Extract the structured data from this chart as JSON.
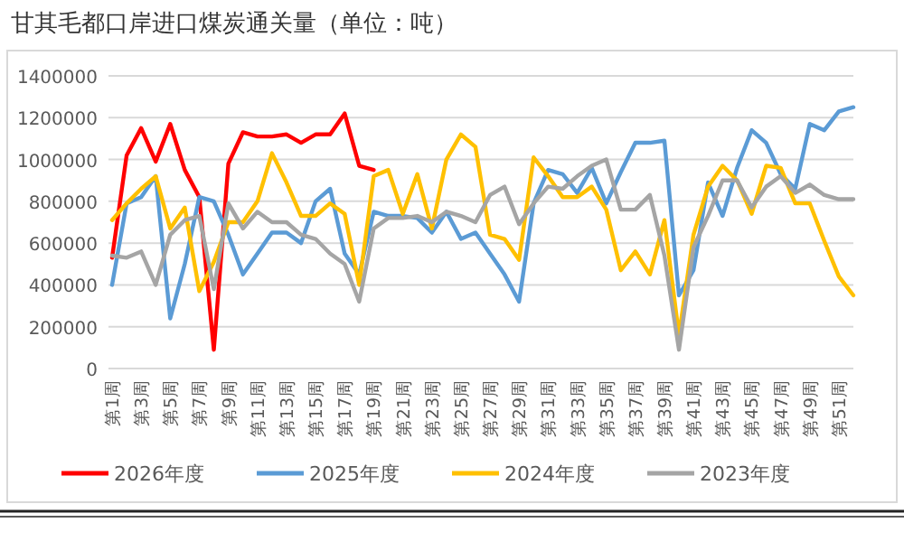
{
  "chart_data": {
    "type": "line",
    "title": "甘其毛都口岸进口煤炭通关量（单位：吨）",
    "categories": [
      "第1周",
      null,
      "第3周",
      null,
      "第5周",
      null,
      "第7周",
      null,
      "第9周",
      null,
      "第11周",
      null,
      "第13周",
      null,
      "第15周",
      null,
      "第17周",
      null,
      "第19周",
      null,
      "第21周",
      null,
      "第23周",
      null,
      "第25周",
      null,
      "第27周",
      null,
      "第29周",
      null,
      "第31周",
      null,
      "第33周",
      null,
      "第35周",
      null,
      "第37周",
      null,
      "第39周",
      null,
      "第41周",
      null,
      "第43周",
      null,
      "第45周",
      null,
      "第47周",
      null,
      "第49周",
      null,
      "第51周",
      null
    ],
    "series": [
      {
        "name": "2026年度",
        "color": "#ff0000",
        "values": [
          530000,
          1020000,
          1150000,
          990000,
          1170000,
          950000,
          820000,
          90000,
          980000,
          1130000,
          1110000,
          1110000,
          1120000,
          1080000,
          1120000,
          1120000,
          1220000,
          970000,
          950000,
          null,
          null,
          null,
          null,
          null,
          null,
          null,
          null,
          null,
          null,
          null,
          null,
          null,
          null,
          null,
          null,
          null,
          null,
          null,
          null,
          null,
          null,
          null,
          null,
          null,
          null,
          null,
          null,
          null,
          null,
          null,
          null,
          null
        ]
      },
      {
        "name": "2025年度",
        "color": "#5b9bd5",
        "values": [
          400000,
          790000,
          820000,
          920000,
          240000,
          500000,
          820000,
          800000,
          640000,
          450000,
          550000,
          650000,
          650000,
          600000,
          800000,
          860000,
          550000,
          450000,
          750000,
          730000,
          730000,
          720000,
          650000,
          750000,
          620000,
          650000,
          550000,
          450000,
          320000,
          790000,
          950000,
          930000,
          840000,
          960000,
          790000,
          940000,
          1080000,
          1080000,
          1090000,
          350000,
          470000,
          890000,
          730000,
          960000,
          1140000,
          1080000,
          930000,
          860000,
          1170000,
          1140000,
          1230000,
          1250000
        ]
      },
      {
        "name": "2024年度",
        "color": "#ffc000",
        "values": [
          710000,
          790000,
          860000,
          920000,
          670000,
          770000,
          370000,
          510000,
          700000,
          700000,
          800000,
          1030000,
          890000,
          730000,
          730000,
          790000,
          740000,
          400000,
          920000,
          950000,
          740000,
          930000,
          670000,
          1000000,
          1120000,
          1060000,
          640000,
          620000,
          520000,
          1010000,
          920000,
          820000,
          820000,
          870000,
          760000,
          470000,
          560000,
          450000,
          710000,
          160000,
          640000,
          870000,
          970000,
          900000,
          740000,
          970000,
          960000,
          790000,
          790000,
          610000,
          440000,
          350000
        ]
      },
      {
        "name": "2023年度",
        "color": "#a5a5a5",
        "values": [
          540000,
          530000,
          560000,
          400000,
          640000,
          710000,
          730000,
          380000,
          790000,
          670000,
          750000,
          700000,
          700000,
          640000,
          620000,
          550000,
          500000,
          320000,
          670000,
          720000,
          720000,
          730000,
          700000,
          750000,
          730000,
          700000,
          830000,
          870000,
          690000,
          790000,
          870000,
          860000,
          920000,
          970000,
          1000000,
          760000,
          760000,
          830000,
          540000,
          90000,
          580000,
          730000,
          900000,
          900000,
          770000,
          870000,
          920000,
          840000,
          880000,
          830000,
          810000,
          810000
        ]
      }
    ],
    "ylim": [
      0,
      1400000
    ],
    "yticks": [
      0,
      200000,
      400000,
      600000,
      800000,
      1000000,
      1200000,
      1400000
    ],
    "grid": "y",
    "legend": "bottom",
    "line_style": "solid",
    "marker": "none"
  }
}
